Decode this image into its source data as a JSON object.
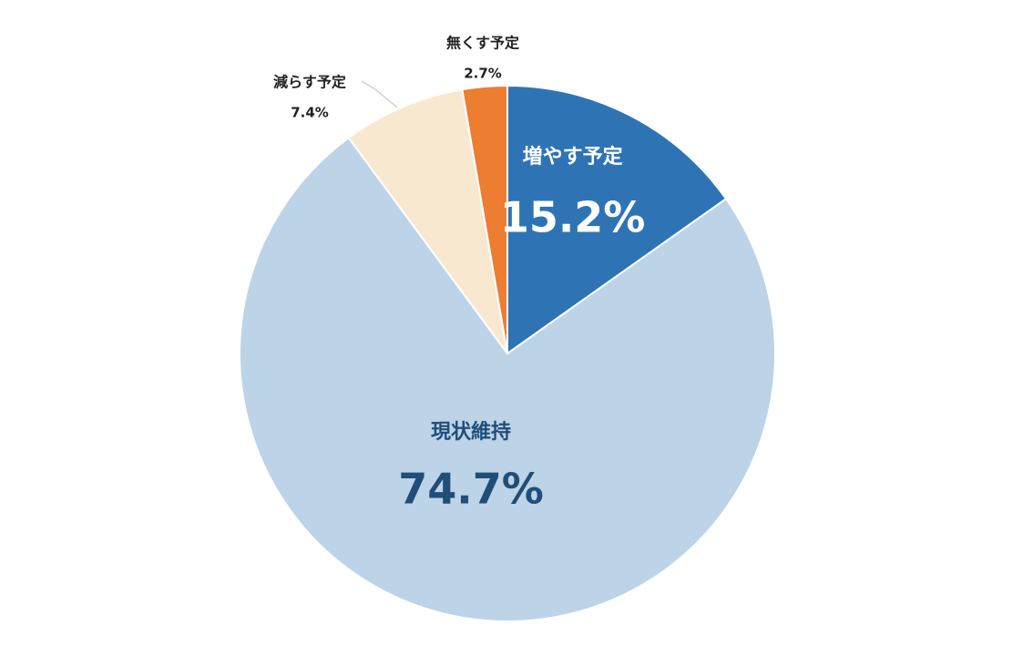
{
  "chart_data": {
    "type": "pie",
    "start_angle_deg": 0,
    "direction": "clockwise",
    "slices": [
      {
        "label": "増やす予定",
        "value": 15.2,
        "value_label": "15.2%",
        "color": "#2e74b5",
        "text_color": "#ffffff",
        "label_style": "inside"
      },
      {
        "label": "現状維持",
        "value": 74.7,
        "value_label": "74.7%",
        "color": "#bdd3e7",
        "text_color": "#1f4e79",
        "label_style": "inside"
      },
      {
        "label": "減らす予定",
        "value": 7.4,
        "value_label": "7.4%",
        "color": "#f8e8d0",
        "text_color": "#222222",
        "label_style": "outside"
      },
      {
        "label": "無くす予定",
        "value": 2.7,
        "value_label": "2.7%",
        "color": "#ed7d31",
        "text_color": "#222222",
        "label_style": "outside"
      }
    ],
    "title": "",
    "legend": "none"
  }
}
